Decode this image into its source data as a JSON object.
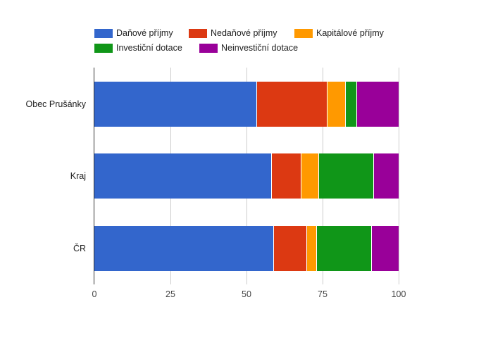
{
  "chart_data": {
    "type": "bar",
    "orientation": "horizontal",
    "stacked": true,
    "title": "",
    "xlabel": "",
    "ylabel": "",
    "xlim": [
      0,
      100
    ],
    "x_ticks": [
      "0",
      "25",
      "50",
      "75",
      "100"
    ],
    "grid": true,
    "legend_position": "top",
    "categories": [
      "Obec Prušánky",
      "Kraj",
      "ČR"
    ],
    "series": [
      {
        "name": "Daňové příjmy",
        "color": "#3366cc",
        "values": [
          53.5,
          58.3,
          59.0
        ]
      },
      {
        "name": "Nedaňové příjmy",
        "color": "#dc3912",
        "values": [
          23.1,
          9.8,
          10.9
        ]
      },
      {
        "name": "Kapitálové příjmy",
        "color": "#ff9900",
        "values": [
          6.0,
          5.8,
          3.2
        ]
      },
      {
        "name": "Investiční dotace",
        "color": "#109618",
        "values": [
          3.7,
          18.0,
          18.1
        ]
      },
      {
        "name": "Neinvestiční dotace",
        "color": "#990099",
        "values": [
          13.7,
          8.1,
          8.8
        ]
      }
    ]
  },
  "legend": [
    {
      "label": "Daňové příjmy",
      "color": "#3366cc"
    },
    {
      "label": "Nedaňové příjmy",
      "color": "#dc3912"
    },
    {
      "label": "Kapitálové příjmy",
      "color": "#ff9900"
    },
    {
      "label": "Investiční dotace",
      "color": "#109618"
    },
    {
      "label": "Neinvestiční dotace",
      "color": "#990099"
    }
  ],
  "axis": {
    "ticks": [
      "0",
      "25",
      "50",
      "75",
      "100"
    ]
  },
  "categories": [
    "Obec Prušánky",
    "Kraj",
    "ČR"
  ]
}
